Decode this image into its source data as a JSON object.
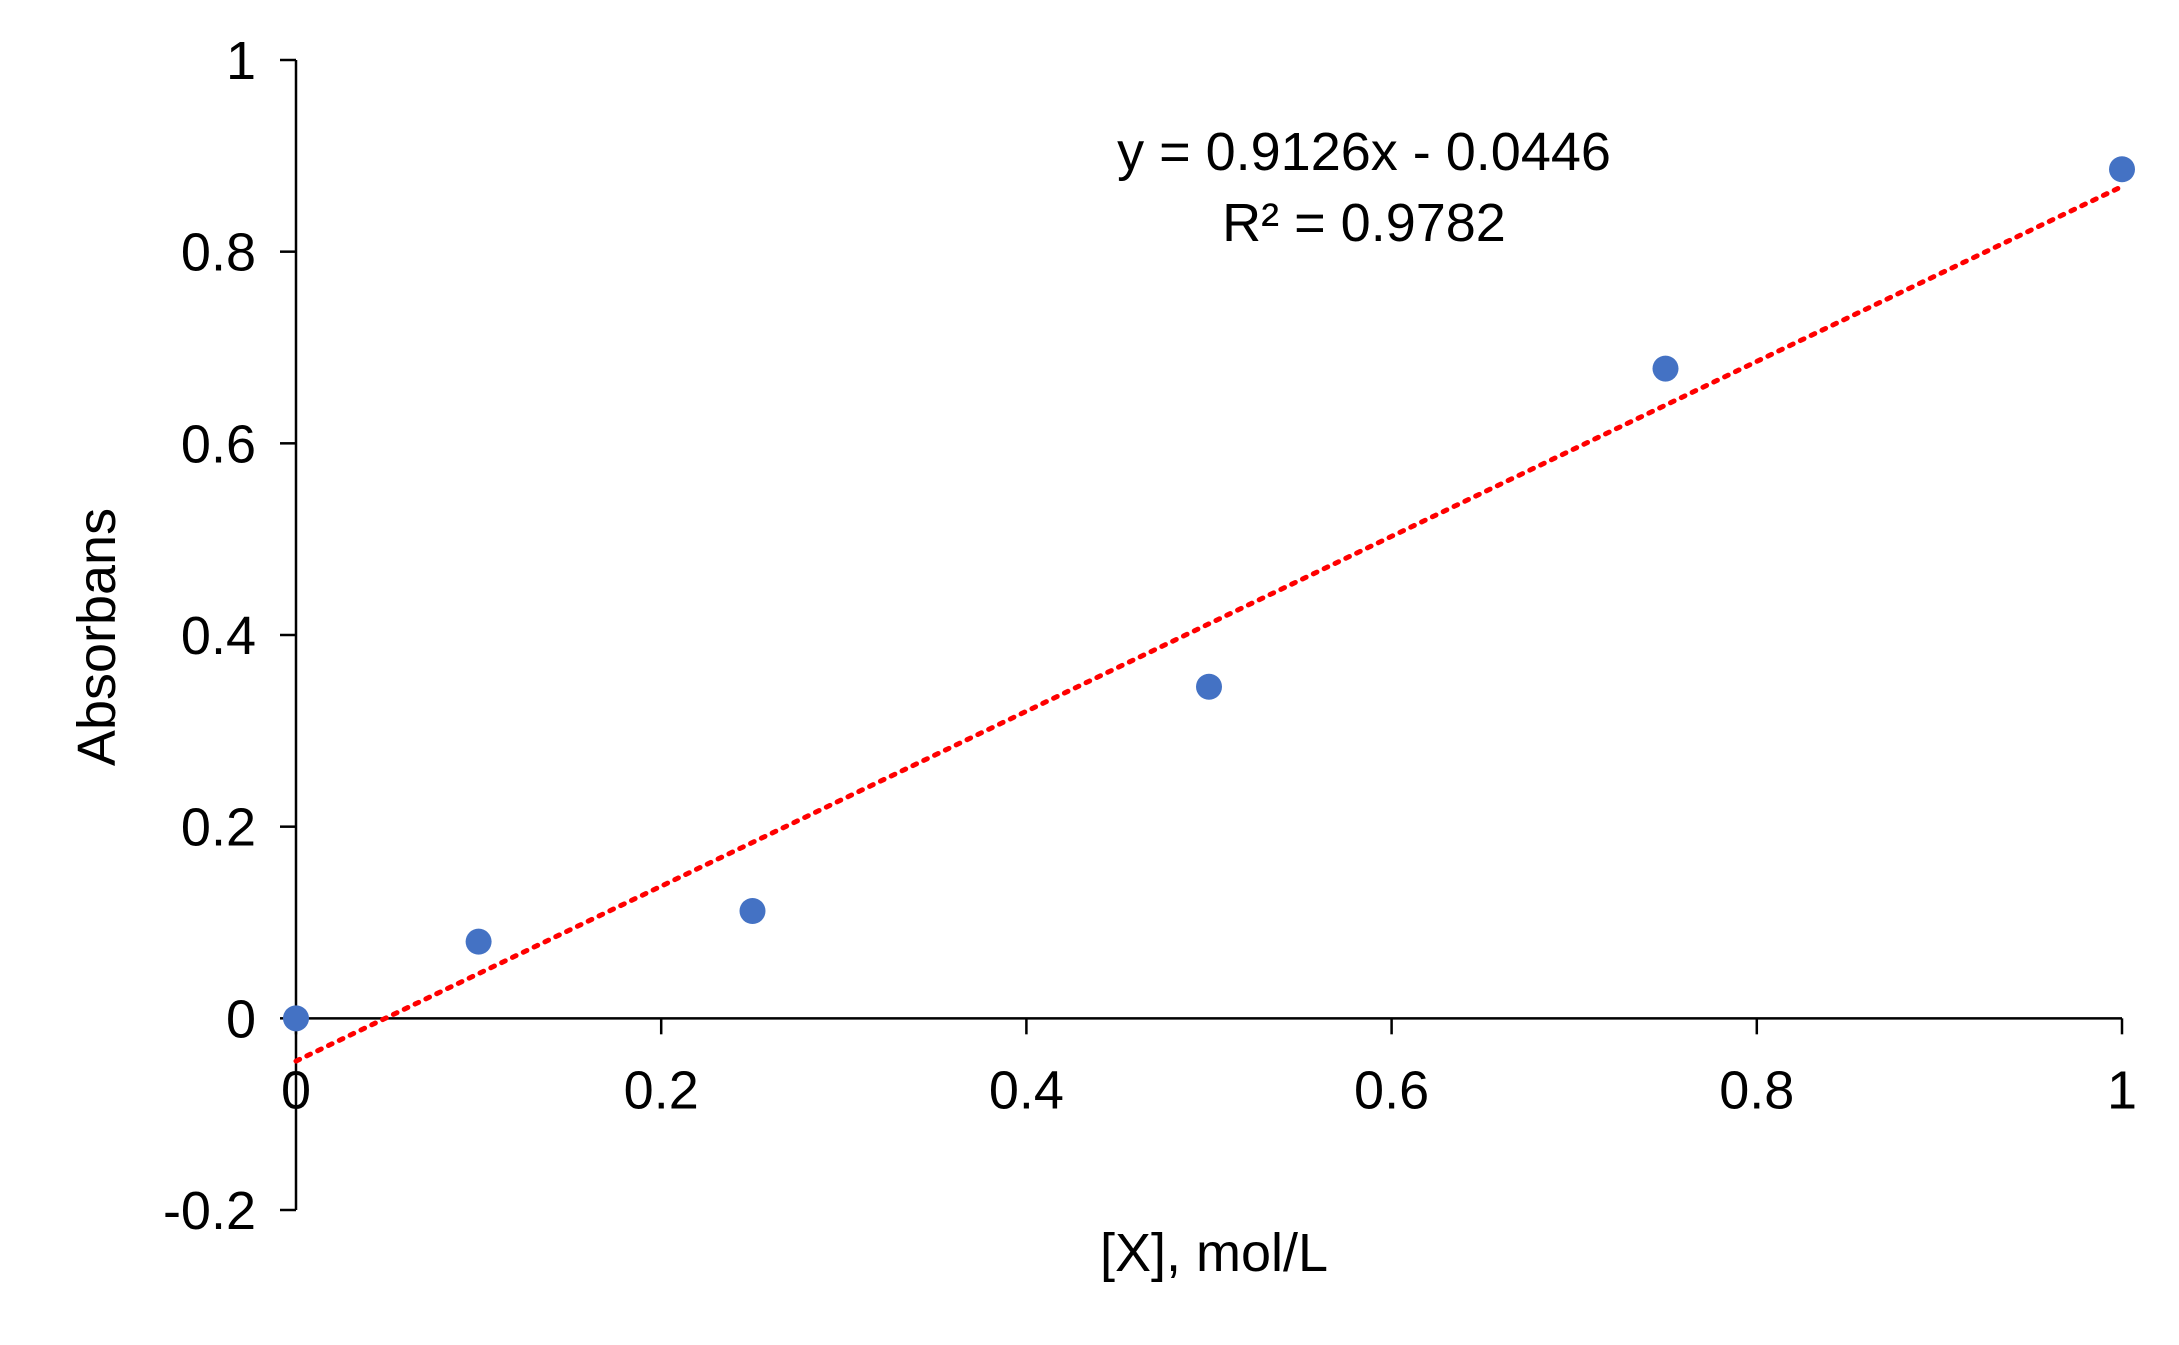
{
  "chart_data": {
    "type": "scatter",
    "title": "",
    "xlabel": "[X], mol/L",
    "ylabel": "Absorbans",
    "xlim": [
      0,
      1
    ],
    "ylim": [
      -0.2,
      1
    ],
    "x_ticks": [
      "0",
      "0.2",
      "0.4",
      "0.6",
      "0.8",
      "1"
    ],
    "y_ticks": [
      "-0.2",
      "0",
      "0.2",
      "0.4",
      "0.6",
      "0.8",
      "1"
    ],
    "grid": false,
    "legend": "none",
    "series": [
      {
        "color": "#4472C4",
        "marker": "circle",
        "points": [
          {
            "x": 0,
            "y": 0
          },
          {
            "x": 0.1,
            "y": 0.08
          },
          {
            "x": 0.25,
            "y": 0.112
          },
          {
            "x": 0.5,
            "y": 0.346
          },
          {
            "x": 0.75,
            "y": 0.678
          },
          {
            "x": 1,
            "y": 0.886
          }
        ]
      }
    ],
    "trendline": {
      "type": "linear",
      "slope": 0.9126,
      "intercept": -0.0446,
      "x_range": [
        0,
        1
      ],
      "color": "#FF0000",
      "style": "dotted",
      "equation": "y = 0.9126x - 0.0446",
      "r_squared": "R² = 0.9782"
    }
  }
}
